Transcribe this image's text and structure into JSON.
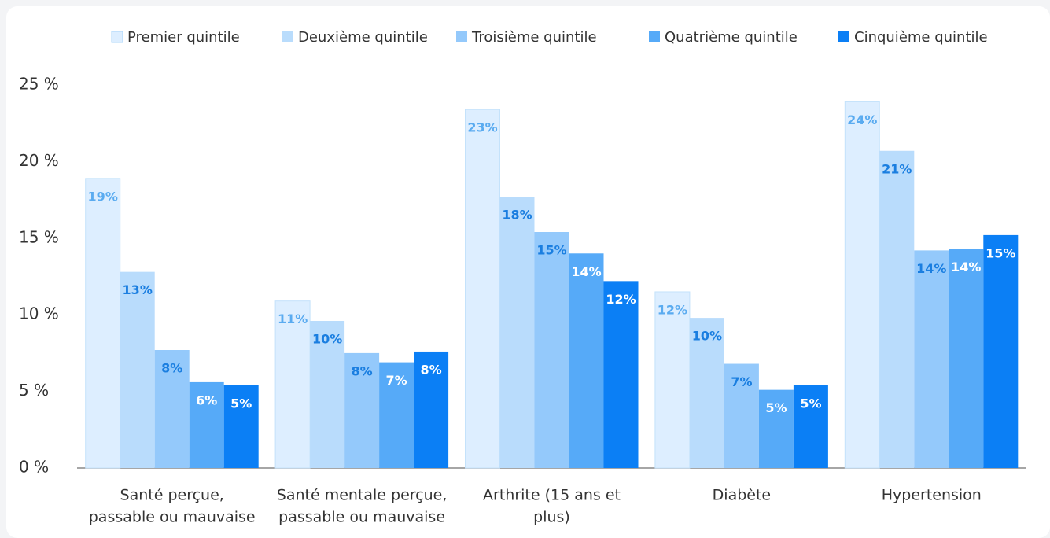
{
  "chart_data": {
    "type": "bar",
    "categories": [
      [
        "Santé perçue,",
        "passable ou mauvaise"
      ],
      [
        "Santé mentale perçue,",
        "passable ou mauvaise"
      ],
      [
        "Arthrite (15 ans et",
        "plus)"
      ],
      [
        "Diabète"
      ],
      [
        "Hypertension"
      ]
    ],
    "series": [
      {
        "name": "Premier quintile",
        "color": "#ddeeff",
        "values": [
          18.9,
          10.9,
          23.4,
          11.5,
          23.9
        ],
        "value_labels": [
          "19%",
          "11%",
          "23%",
          "12%",
          "24%"
        ]
      },
      {
        "name": "Deuxième quintile",
        "color": "#b9dcfc",
        "values": [
          12.8,
          9.6,
          17.7,
          9.8,
          20.7
        ],
        "value_labels": [
          "13%",
          "10%",
          "18%",
          "10%",
          "21%"
        ]
      },
      {
        "name": "Troisième quintile",
        "color": "#94c9fb",
        "values": [
          7.7,
          7.5,
          15.4,
          6.8,
          14.2
        ],
        "value_labels": [
          "8%",
          "8%",
          "15%",
          "7%",
          "14%"
        ]
      },
      {
        "name": "Quatrième quintile",
        "color": "#56aaf8",
        "values": [
          5.6,
          6.9,
          14.0,
          5.1,
          14.3
        ],
        "value_labels": [
          "6%",
          "7%",
          "14%",
          "5%",
          "14%"
        ]
      },
      {
        "name": "Cinquième quintile",
        "color": "#0b7ff5",
        "values": [
          5.4,
          7.6,
          12.2,
          5.4,
          15.2
        ],
        "value_labels": [
          "5%",
          "8%",
          "12%",
          "5%",
          "15%"
        ]
      }
    ],
    "ylim": [
      0,
      25
    ],
    "yticks": [
      {
        "value": 0,
        "label": "0 %"
      },
      {
        "value": 5,
        "label": "5 %"
      },
      {
        "value": 10,
        "label": "10 %"
      },
      {
        "value": 15,
        "label": "15 %"
      },
      {
        "value": 20,
        "label": "20 %"
      },
      {
        "value": 25,
        "label": "25 %"
      }
    ],
    "grid": false,
    "legend": "top"
  }
}
